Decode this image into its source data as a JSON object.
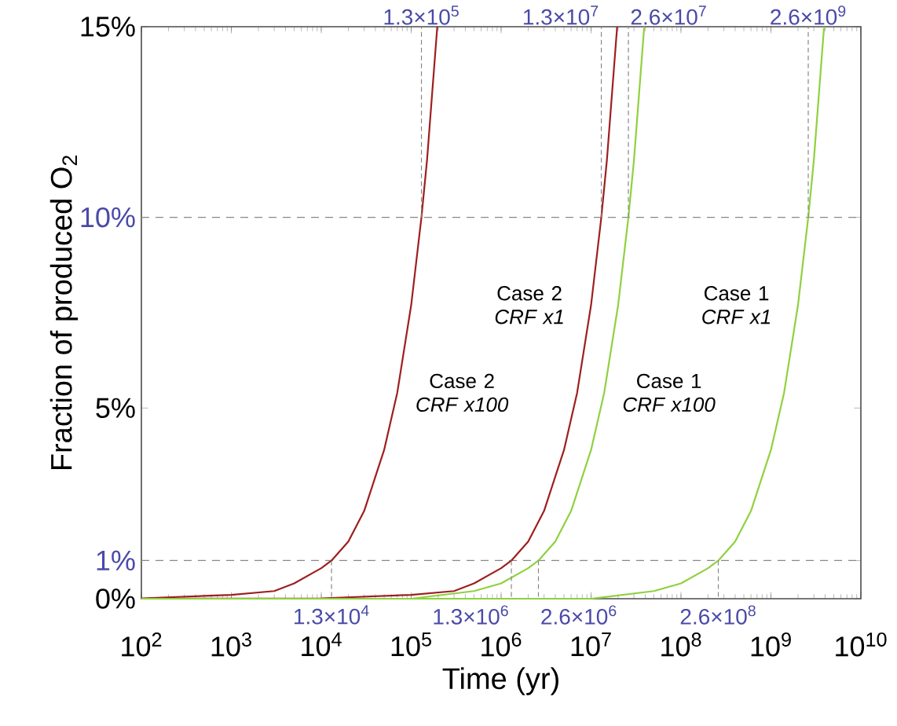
{
  "chart_data": {
    "type": "line",
    "xlabel": "Time (yr)",
    "ylabel": "Fraction of produced O$_{2}$",
    "log": "x",
    "grid": false,
    "marker": "none",
    "line_style": "solid",
    "xlim": [
      100,
      10000000000
    ],
    "ylim": [
      0,
      15
    ],
    "xticks": [
      {
        "value": 100,
        "label": "10$^{2}$"
      },
      {
        "value": 1000,
        "label": "10$^{3}$"
      },
      {
        "value": 10000,
        "label": "10$^{4}$"
      },
      {
        "value": 100000,
        "label": "10$^{5}$"
      },
      {
        "value": 1000000,
        "label": "10$^{6}$"
      },
      {
        "value": 10000000,
        "label": "10$^{7}$"
      },
      {
        "value": 100000000,
        "label": "10$^{8}$"
      },
      {
        "value": 1000000000,
        "label": "10$^{9}$"
      },
      {
        "value": 10000000000,
        "label": "10$^{10}$"
      }
    ],
    "yticks": [
      {
        "value": 0,
        "label": "0%"
      },
      {
        "value": 1,
        "label": "1%"
      },
      {
        "value": 5,
        "label": "5%"
      },
      {
        "value": 10,
        "label": "10%"
      },
      {
        "value": 15,
        "label": "15%"
      }
    ],
    "series": [
      {
        "name": "Case 2 *CRF x100*",
        "color": "#9e1f1f",
        "x": [
          100,
          1000,
          3000,
          5000,
          10000,
          13000,
          20000,
          30000,
          50000,
          70000,
          100000,
          130000,
          150000,
          195000
        ],
        "values": [
          0.01,
          0.1,
          0.2,
          0.4,
          0.8,
          1,
          1.5,
          2.3,
          3.9,
          5.4,
          7.7,
          10,
          11.5,
          15
        ]
      },
      {
        "name": "Case 2 *CRF x1*",
        "color": "#9e1f1f",
        "x": [
          100,
          10000,
          100000,
          300000,
          500000,
          1000000,
          1300000,
          2000000,
          3000000,
          5000000,
          7000000,
          10000000,
          13000000,
          15000000,
          19500000
        ],
        "values": [
          0,
          0.01,
          0.1,
          0.2,
          0.4,
          0.8,
          1,
          1.5,
          2.3,
          3.9,
          5.4,
          7.7,
          10,
          11.5,
          15
        ]
      },
      {
        "name": "Case 1 *CRF x100*",
        "color": "#8fd13f",
        "x": [
          100,
          10000,
          100000,
          500000,
          1000000,
          2000000,
          2600000,
          4000000,
          6000000,
          10000000,
          14000000,
          20000000,
          26000000,
          30000000,
          39000000
        ],
        "values": [
          0,
          0,
          0,
          0.2,
          0.4,
          0.8,
          1,
          1.5,
          2.3,
          3.9,
          5.4,
          7.7,
          10,
          11.5,
          15
        ]
      },
      {
        "name": "Case 1 *CRF x1*",
        "color": "#8fd13f",
        "x": [
          100,
          1000000,
          10000000,
          50000000,
          100000000,
          200000000,
          260000000,
          400000000,
          600000000,
          1000000000,
          1400000000,
          2000000000,
          2600000000,
          3000000000,
          3900000000
        ],
        "values": [
          0,
          0,
          0,
          0.2,
          0.4,
          0.8,
          1,
          1.5,
          2.3,
          3.9,
          5.4,
          7.7,
          10,
          11.5,
          15
        ]
      }
    ],
    "ref_lines": [
      {
        "axis": "y",
        "value": 1,
        "color": "#888888",
        "line_style": "dashed"
      },
      {
        "axis": "y",
        "value": 10,
        "color": "#888888",
        "line_style": "dashed"
      }
    ],
    "annotations": [
      {
        "text": "1.3×10$^{4}$",
        "x": 13000,
        "y": 1
      },
      {
        "text": "1.3×10$^{5}$",
        "x": 130000,
        "y": 10
      },
      {
        "text": "1.3×10$^{6}$",
        "x": 1300000,
        "y": 1
      },
      {
        "text": "1.3×10$^{7}$",
        "x": 13000000,
        "y": 10
      },
      {
        "text": "2.6×10$^{6}$",
        "x": 2600000,
        "y": 1
      },
      {
        "text": "2.6×10$^{7}$",
        "x": 26000000,
        "y": 10
      },
      {
        "text": "2.6×10$^{8}$",
        "x": 260000000,
        "y": 1
      },
      {
        "text": "2.6×10$^{9}$",
        "x": 2600000000,
        "y": 10
      }
    ]
  }
}
